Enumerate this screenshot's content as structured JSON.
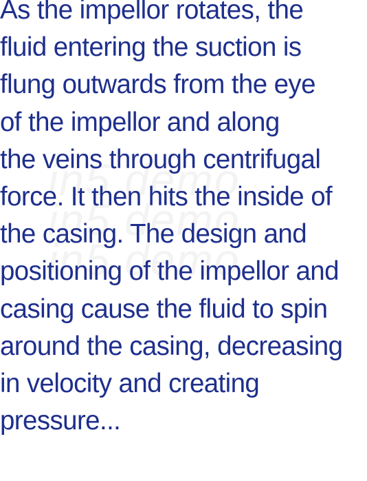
{
  "page": {
    "text_color": "#1e2f8c",
    "background_color": "#ffffff"
  },
  "paragraph": {
    "lines": [
      "As the impellor rotates, the",
      "fluid entering the suction is",
      "flung outwards from the eye",
      "of the impellor and along",
      "the veins through centrifugal",
      "force. It then hits the inside of",
      "the casing. The design and",
      "positioning of the impellor and",
      "casing cause the fluid to spin",
      "around the casing, decreasing",
      "in velocity and creating",
      "pressure..."
    ]
  },
  "watermark": {
    "lines": [
      "in5 demo",
      "in5 demo",
      "in5 demo"
    ]
  }
}
